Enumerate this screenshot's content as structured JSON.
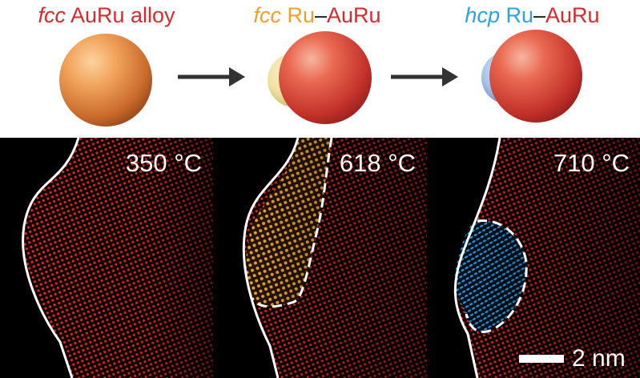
{
  "colors": {
    "fcc_alloy": "#e0262b",
    "fcc_ru": "#f0a02a",
    "hcp_ru": "#2aa3df",
    "auru": "#e0262b",
    "dash": "#111111"
  },
  "headers": [
    {
      "phase": "fcc",
      "label": " AuRu alloy",
      "sep": "",
      "rest": ""
    },
    {
      "phase": "fcc",
      "label": " Ru",
      "sep": "–",
      "rest": "AuRu"
    },
    {
      "phase": "hcp",
      "label": " Ru",
      "sep": "–",
      "rest": "AuRu"
    }
  ],
  "panels": [
    {
      "temperature": "350 °C"
    },
    {
      "temperature": "618 °C"
    },
    {
      "temperature": "710 °C"
    }
  ],
  "scale_bar": {
    "label": "2 nm"
  }
}
